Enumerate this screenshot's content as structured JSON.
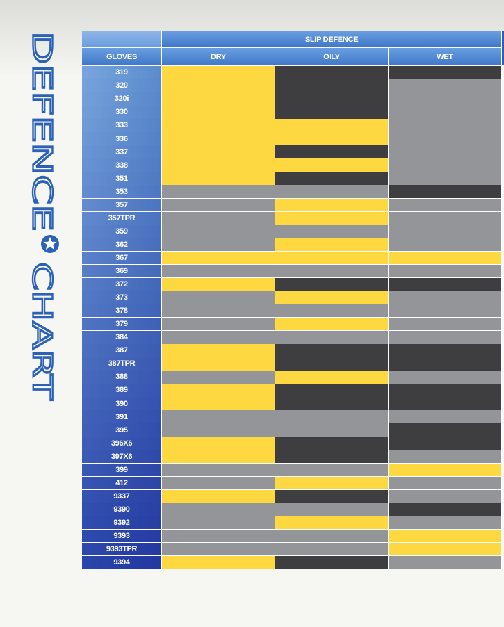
{
  "side_title": {
    "first": "DEFENCE",
    "second": "CHART"
  },
  "table": {
    "group_header": "SLIP DEFENCE",
    "columns": [
      "GLOVES",
      "DRY",
      "OILY",
      "WET"
    ],
    "rows": [
      {
        "glove": "319",
        "colors": [
          "#fed840",
          "#3e3e40",
          "#3e3e40"
        ]
      },
      {
        "glove": "320",
        "colors": [
          "#fed840",
          "#3e3e40",
          "#939598"
        ]
      },
      {
        "glove": "320i",
        "colors": [
          "#fed840",
          "#3e3e40",
          "#939598"
        ]
      },
      {
        "glove": "330",
        "colors": [
          "#fed840",
          "#3e3e40",
          "#939598"
        ]
      },
      {
        "glove": "333",
        "colors": [
          "#fed840",
          "#fed840",
          "#939598"
        ]
      },
      {
        "glove": "336",
        "colors": [
          "#fed840",
          "#fed840",
          "#939598"
        ]
      },
      {
        "glove": "337",
        "colors": [
          "#fed840",
          "#3e3e40",
          "#939598"
        ]
      },
      {
        "glove": "338",
        "colors": [
          "#fed840",
          "#fed840",
          "#939598"
        ]
      },
      {
        "glove": "351",
        "colors": [
          "#fed840",
          "#3e3e40",
          "#939598"
        ]
      },
      {
        "glove": "353",
        "colors": [
          "#939598",
          "#939598",
          "#3e3e40"
        ]
      },
      {
        "glove": "357",
        "colors": [
          "#939598",
          "#fed840",
          "#939598"
        ]
      },
      {
        "glove": "357TPR",
        "colors": [
          "#939598",
          "#fed840",
          "#939598"
        ]
      },
      {
        "glove": "359",
        "colors": [
          "#939598",
          "#939598",
          "#939598"
        ]
      },
      {
        "glove": "362",
        "colors": [
          "#939598",
          "#fed840",
          "#939598"
        ]
      },
      {
        "glove": "367",
        "colors": [
          "#fed840",
          "#fed840",
          "#fed840"
        ]
      },
      {
        "glove": "369",
        "colors": [
          "#939598",
          "#939598",
          "#939598"
        ]
      },
      {
        "glove": "372",
        "colors": [
          "#fed840",
          "#3e3e40",
          "#3e3e40"
        ]
      },
      {
        "glove": "373",
        "colors": [
          "#939598",
          "#fed840",
          "#939598"
        ]
      },
      {
        "glove": "378",
        "colors": [
          "#939598",
          "#939598",
          "#939598"
        ]
      },
      {
        "glove": "379",
        "colors": [
          "#939598",
          "#fed840",
          "#939598"
        ]
      },
      {
        "glove": "384",
        "colors": [
          "#939598",
          "#939598",
          "#939598"
        ]
      },
      {
        "glove": "387",
        "colors": [
          "#fed840",
          "#3e3e40",
          "#3e3e40"
        ]
      },
      {
        "glove": "387TPR",
        "colors": [
          "#fed840",
          "#3e3e40",
          "#3e3e40"
        ]
      },
      {
        "glove": "388",
        "colors": [
          "#939598",
          "#fed840",
          "#939598"
        ]
      },
      {
        "glove": "389",
        "colors": [
          "#fed840",
          "#3e3e40",
          "#3e3e40"
        ]
      },
      {
        "glove": "390",
        "colors": [
          "#fed840",
          "#3e3e40",
          "#3e3e40"
        ]
      },
      {
        "glove": "391",
        "colors": [
          "#939598",
          "#939598",
          "#939598"
        ]
      },
      {
        "glove": "395",
        "colors": [
          "#939598",
          "#939598",
          "#3e3e40"
        ]
      },
      {
        "glove": "396X6",
        "colors": [
          "#fed840",
          "#3e3e40",
          "#3e3e40"
        ]
      },
      {
        "glove": "397X6",
        "colors": [
          "#fed840",
          "#3e3e40",
          "#939598"
        ]
      },
      {
        "glove": "399",
        "colors": [
          "#939598",
          "#939598",
          "#fed840"
        ]
      },
      {
        "glove": "412",
        "colors": [
          "#939598",
          "#fed840",
          "#939598"
        ]
      },
      {
        "glove": "9337",
        "colors": [
          "#fed840",
          "#3e3e40",
          "#939598"
        ]
      },
      {
        "glove": "9390",
        "colors": [
          "#939598",
          "#939598",
          "#3e3e40"
        ]
      },
      {
        "glove": "9392",
        "colors": [
          "#939598",
          "#fed840",
          "#939598"
        ]
      },
      {
        "glove": "9393",
        "colors": [
          "#939598",
          "#939598",
          "#fed840"
        ]
      },
      {
        "glove": "9393TPR",
        "colors": [
          "#939598",
          "#939598",
          "#fed840"
        ]
      },
      {
        "glove": "9394",
        "colors": [
          "#fed840",
          "#3e3e40",
          "#939598"
        ]
      }
    ]
  }
}
